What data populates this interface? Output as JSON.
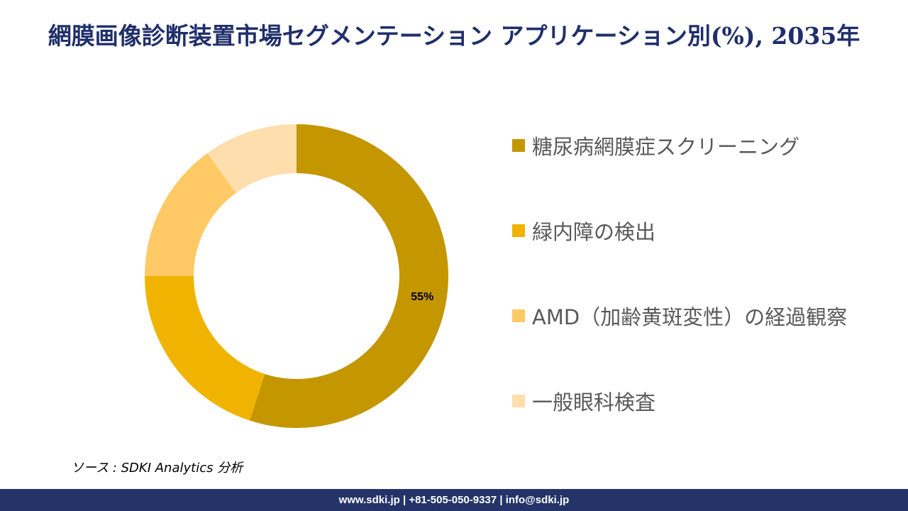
{
  "title": "網膜画像診断装置市場セグメンテーション アプリケーション別(%), 2035年",
  "source": "ソース : SDKI Analytics 分析",
  "footer": "www.sdki.jp | +81-505-050-9337 | info@sdki.jp",
  "chart_data": {
    "type": "pie",
    "donut": true,
    "categories": [
      "糖尿病網膜症スクリーニング",
      "緑内障の検出",
      "AMD（加齢黄斑変性）の経過観察",
      "一般眼科検査"
    ],
    "values": [
      55,
      20,
      15,
      10
    ],
    "colors": [
      "#c49600",
      "#f0b400",
      "#ffc966",
      "#ffdead"
    ],
    "data_labels": [
      "55%",
      "",
      "",
      ""
    ],
    "legend_position": "right"
  }
}
